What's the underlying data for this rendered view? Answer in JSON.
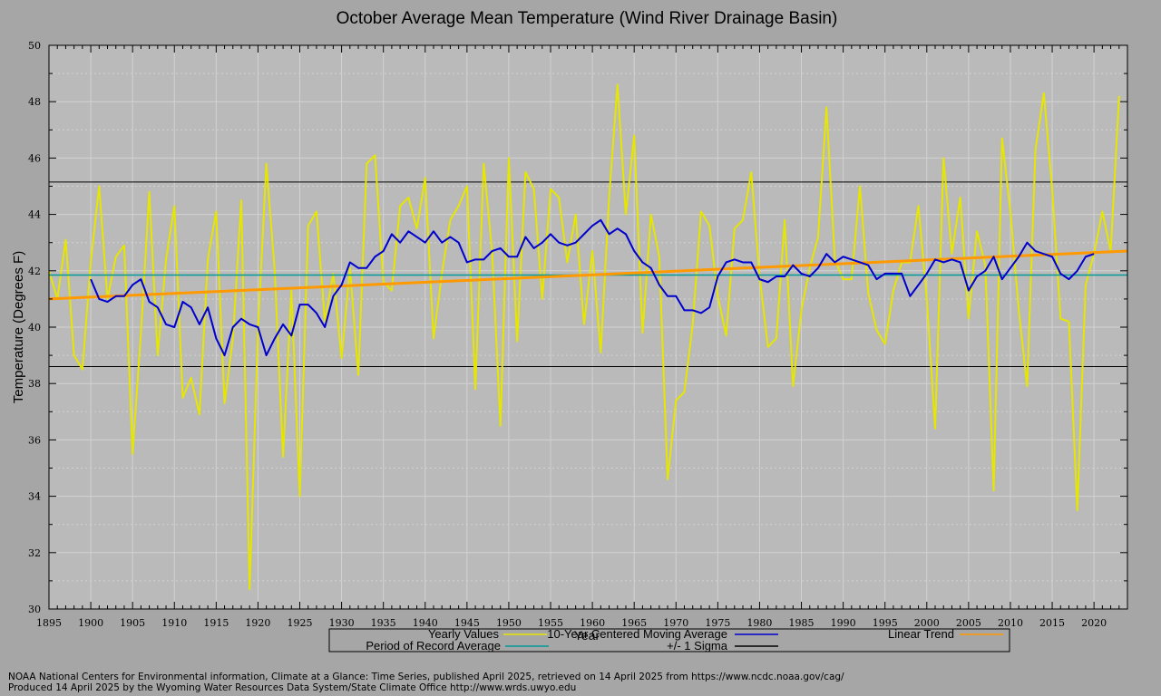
{
  "chart_data": {
    "type": "line",
    "title": "October Average Mean Temperature (Wind River Drainage Basin)",
    "xlabel": "Year",
    "ylabel": "Temperature (Degrees F)",
    "xlim": [
      1895,
      2024
    ],
    "ylim": [
      30,
      50
    ],
    "x_ticks": [
      1895,
      1900,
      1905,
      1910,
      1915,
      1920,
      1925,
      1930,
      1935,
      1940,
      1945,
      1950,
      1955,
      1960,
      1965,
      1970,
      1975,
      1980,
      1985,
      1990,
      1995,
      2000,
      2005,
      2010,
      2015,
      2020
    ],
    "y_ticks": [
      30,
      32,
      34,
      36,
      38,
      40,
      42,
      44,
      46,
      48,
      50
    ],
    "grid": true,
    "legend_position": "bottom",
    "x_start_year": 1895,
    "series": [
      {
        "name": "Yearly Values",
        "color": "#e6e600",
        "values": [
          42.0,
          41.0,
          43.1,
          39.0,
          38.5,
          42.3,
          45.0,
          41.0,
          42.5,
          42.9,
          35.5,
          39.8,
          44.8,
          39.0,
          42.4,
          44.3,
          37.5,
          38.2,
          36.9,
          42.4,
          44.1,
          37.3,
          39.6,
          44.5,
          30.7,
          39.9,
          45.8,
          42.0,
          35.4,
          41.3,
          34.0,
          43.6,
          44.1,
          40.2,
          41.9,
          38.9,
          42.1,
          38.3,
          45.8,
          46.1,
          41.6,
          41.3,
          44.3,
          44.6,
          43.5,
          45.3,
          39.6,
          41.9,
          43.8,
          44.3,
          45.0,
          37.8,
          45.8,
          42.7,
          36.5,
          46.0,
          39.5,
          45.5,
          44.9,
          41.0,
          44.9,
          44.6,
          42.3,
          44.0,
          40.1,
          42.7,
          39.1,
          44.6,
          48.6,
          44.0,
          46.8,
          39.8,
          44.0,
          42.5,
          34.6,
          37.4,
          37.7,
          40.1,
          44.1,
          43.6,
          41.1,
          39.7,
          43.5,
          43.8,
          45.5,
          41.8,
          39.3,
          39.6,
          43.8,
          37.9,
          40.6,
          42.1,
          43.2,
          47.8,
          42.4,
          41.7,
          41.7,
          45.0,
          41.2,
          39.9,
          39.4,
          41.3,
          42.3,
          42.3,
          44.3,
          41.0,
          36.4,
          46.0,
          42.6,
          44.6,
          40.3,
          43.4,
          42.2,
          34.2,
          46.7,
          44.1,
          40.6,
          37.9,
          46.3,
          48.3,
          44.9,
          40.3,
          40.2,
          33.5,
          41.5,
          42.6,
          44.1,
          42.7,
          48.2
        ]
      },
      {
        "name": "10-Year Centered Moving Average",
        "color": "#0000cc",
        "x_start_year": 1900,
        "values": [
          41.7,
          41.0,
          40.9,
          41.1,
          41.1,
          41.5,
          41.7,
          40.9,
          40.7,
          40.1,
          40.0,
          40.9,
          40.7,
          40.1,
          40.7,
          39.6,
          39.0,
          40.0,
          40.3,
          40.1,
          40.0,
          39.0,
          39.6,
          40.1,
          39.7,
          40.8,
          40.8,
          40.5,
          40.0,
          41.1,
          41.5,
          42.3,
          42.1,
          42.1,
          42.5,
          42.7,
          43.3,
          43.0,
          43.4,
          43.2,
          43.0,
          43.4,
          43.0,
          43.2,
          43.0,
          42.3,
          42.4,
          42.4,
          42.7,
          42.8,
          42.5,
          42.5,
          43.2,
          42.8,
          43.0,
          43.3,
          43.0,
          42.9,
          43.0,
          43.3,
          43.6,
          43.8,
          43.3,
          43.5,
          43.3,
          42.7,
          42.3,
          42.1,
          41.5,
          41.1,
          41.1,
          40.6,
          40.6,
          40.5,
          40.7,
          41.8,
          42.3,
          42.4,
          42.3,
          42.3,
          41.7,
          41.6,
          41.8,
          41.8,
          42.2,
          41.9,
          41.8,
          42.1,
          42.6,
          42.3,
          42.5,
          42.4,
          42.3,
          42.2,
          41.7,
          41.9,
          41.9,
          41.9,
          41.1,
          41.5,
          41.9,
          42.4,
          42.3,
          42.4,
          42.3,
          41.3,
          41.8,
          42.0,
          42.5,
          41.7,
          42.1,
          42.5,
          43.0,
          42.7,
          42.6,
          42.5,
          41.9,
          41.7,
          42.0,
          42.5,
          42.6
        ]
      },
      {
        "name": "Linear Trend",
        "color": "#ff9900",
        "x": [
          1895,
          2024
        ],
        "values": [
          41.0,
          42.7
        ]
      },
      {
        "name": "Period of Record Average",
        "color": "#009999",
        "value": 41.85
      },
      {
        "name": "+/- 1 Sigma",
        "color": "#000000",
        "values": [
          45.15,
          38.6
        ]
      }
    ]
  },
  "footer": {
    "line1": "NOAA National Centers for Environmental information, Climate at a Glance: Time Series, published April 2025, retrieved on 14 April 2025 from https://www.ncdc.noaa.gov/cag/",
    "line2": "Produced 14 April 2025 by the Wyoming Water Resources Data System/State Climate Office http://www.wrds.uwyo.edu"
  }
}
